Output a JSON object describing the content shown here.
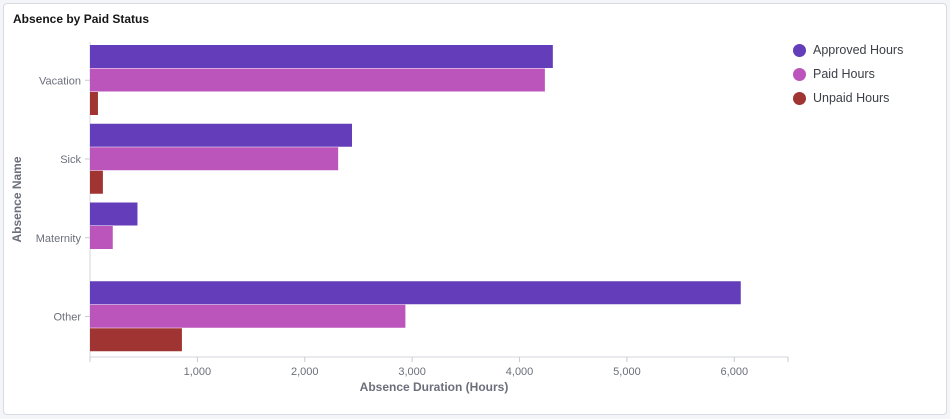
{
  "card": {
    "title": "Absence by Paid Status"
  },
  "chart_data": {
    "type": "bar",
    "orientation": "horizontal",
    "title": "Absence by Paid Status",
    "xlabel": "Absence Duration (Hours)",
    "ylabel": "Absence Name",
    "categories": [
      "Vacation",
      "Sick",
      "Maternity",
      "Other"
    ],
    "series": [
      {
        "name": "Approved Hours",
        "color": "#643dba",
        "values": [
          4310,
          2440,
          442,
          6060
        ]
      },
      {
        "name": "Paid Hours",
        "color": "#bc55bb",
        "values": [
          4236,
          2311,
          212,
          2937
        ]
      },
      {
        "name": "Unpaid Hours",
        "color": "#a03432",
        "values": [
          74,
          120,
          0,
          856
        ]
      }
    ],
    "xticks": [
      "1,000",
      "2,000",
      "3,000",
      "4,000",
      "5,000",
      "6,000"
    ],
    "xtick_values": [
      1000,
      2000,
      3000,
      4000,
      5000,
      6000
    ],
    "xlim": [
      0,
      6500
    ],
    "grid": false,
    "legend_position": "top-right"
  }
}
